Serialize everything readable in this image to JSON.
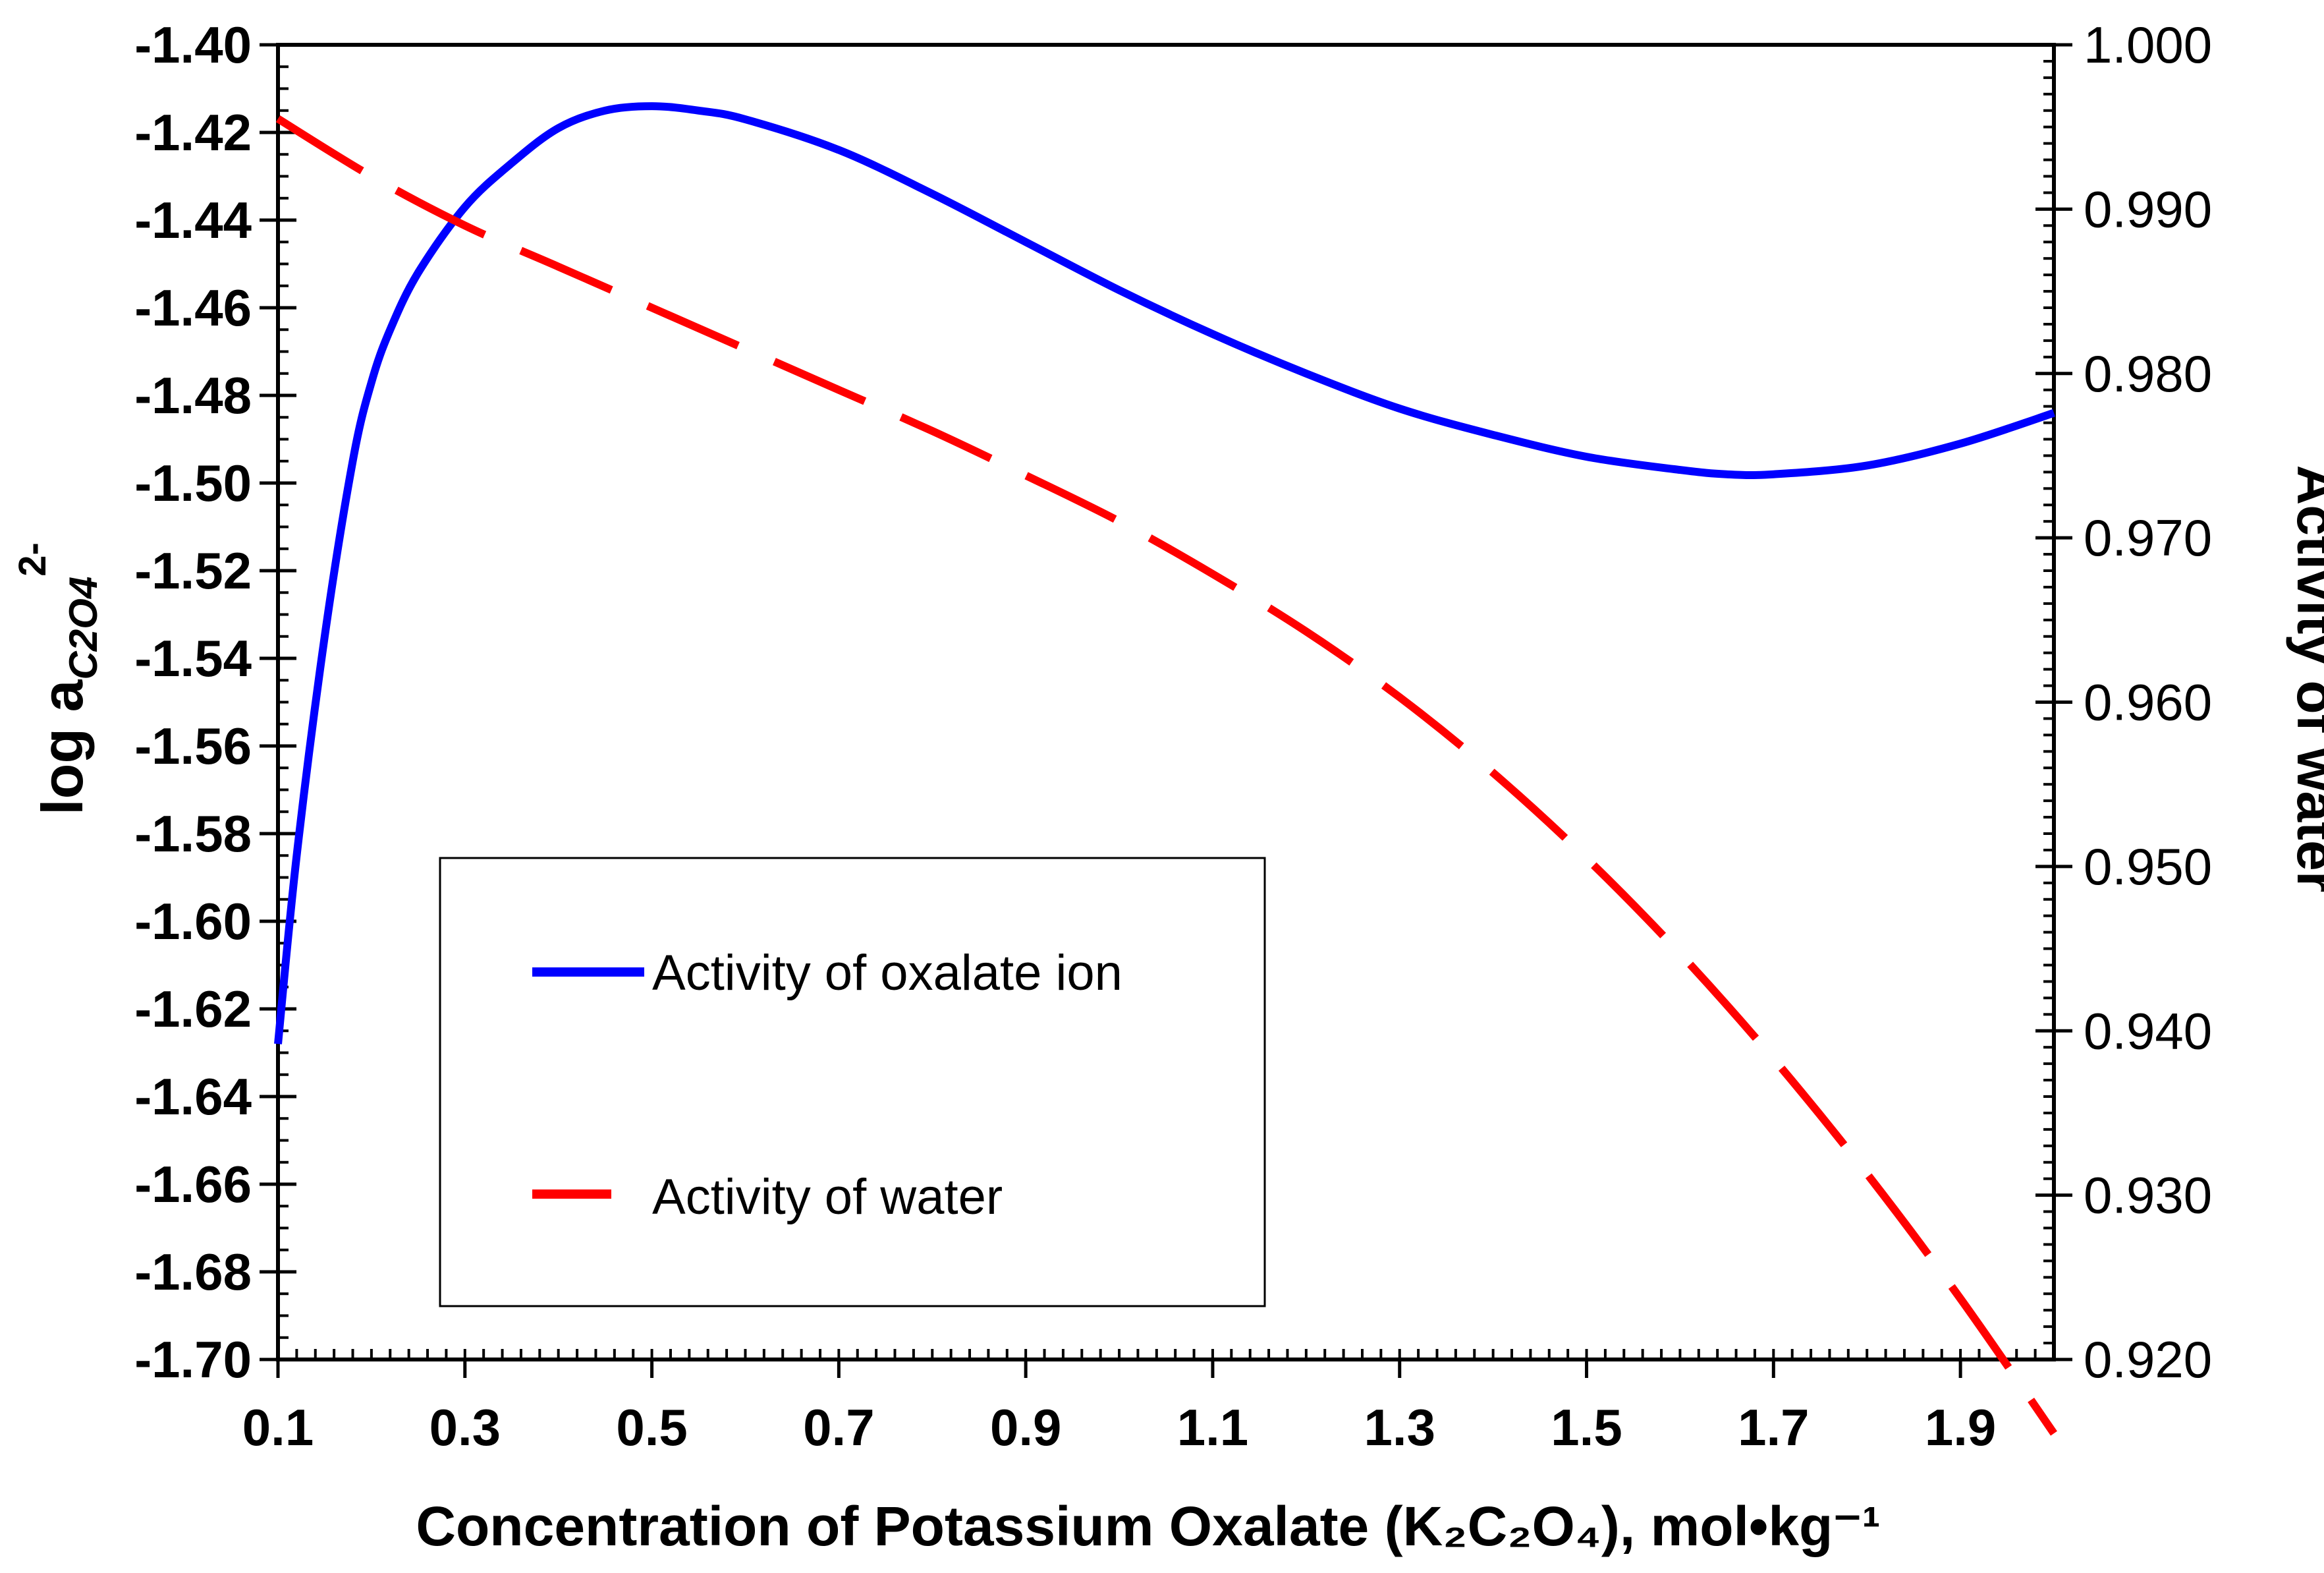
{
  "chart_data": {
    "type": "line",
    "xlabel": "Concentration of Potassium Oxalate (K₂C₂O₄), mol•kg⁻¹",
    "ylabel_left": "log a",
    "ylabel_left_subscript": "C2O4",
    "ylabel_left_superscript": "2-",
    "ylabel_right": "Activity of water",
    "xlim": [
      0.1,
      2.0
    ],
    "ylim_left": [
      -1.7,
      -1.4
    ],
    "ylim_right": [
      0.92,
      1.0
    ],
    "x_ticks": [
      "0.1",
      "0.3",
      "0.5",
      "0.7",
      "0.9",
      "1.1",
      "1.3",
      "1.5",
      "1.7",
      "1.9"
    ],
    "y_left_ticks": [
      "-1.40",
      "-1.42",
      "-1.44",
      "-1.46",
      "-1.48",
      "-1.50",
      "-1.52",
      "-1.54",
      "-1.56",
      "-1.58",
      "-1.60",
      "-1.62",
      "-1.64",
      "-1.66",
      "-1.68",
      "-1.70"
    ],
    "y_right_ticks": [
      "1.000",
      "0.990",
      "0.980",
      "0.970",
      "0.960",
      "0.950",
      "0.940",
      "0.930",
      "0.920"
    ],
    "grid": false,
    "legend_position": "lower-left",
    "series": [
      {
        "name": "Activity of oxalate ion",
        "axis": "left",
        "color": "#0000ff",
        "style": "solid",
        "x": [
          0.1,
          0.12,
          0.15,
          0.18,
          0.2,
          0.22,
          0.25,
          0.3,
          0.35,
          0.4,
          0.45,
          0.5,
          0.55,
          0.6,
          0.7,
          0.8,
          0.9,
          1.0,
          1.1,
          1.2,
          1.3,
          1.4,
          1.5,
          1.6,
          1.65,
          1.7,
          1.8,
          1.9,
          2.0
        ],
        "values": [
          -1.628,
          -1.585,
          -1.535,
          -1.495,
          -1.477,
          -1.465,
          -1.452,
          -1.437,
          -1.427,
          -1.419,
          -1.415,
          -1.414,
          -1.415,
          -1.417,
          -1.424,
          -1.434,
          -1.445,
          -1.456,
          -1.466,
          -1.475,
          -1.483,
          -1.489,
          -1.494,
          -1.497,
          -1.498,
          -1.498,
          -1.496,
          -1.491,
          -1.484
        ]
      },
      {
        "name": "Activity of water",
        "axis": "right",
        "color": "#ff0000",
        "style": "dashed",
        "x": [
          0.1,
          0.2,
          0.3,
          0.4,
          0.5,
          0.6,
          0.7,
          0.8,
          0.9,
          1.0,
          1.1,
          1.2,
          1.3,
          1.4,
          1.5,
          1.6,
          1.7,
          1.8,
          1.9,
          2.0
        ],
        "values": [
          0.9955,
          0.992,
          0.989,
          0.9865,
          0.984,
          0.9815,
          0.979,
          0.9765,
          0.9738,
          0.971,
          0.9678,
          0.9643,
          0.9603,
          0.9557,
          0.9505,
          0.9447,
          0.9383,
          0.9313,
          0.9237,
          0.9155
        ]
      }
    ]
  }
}
